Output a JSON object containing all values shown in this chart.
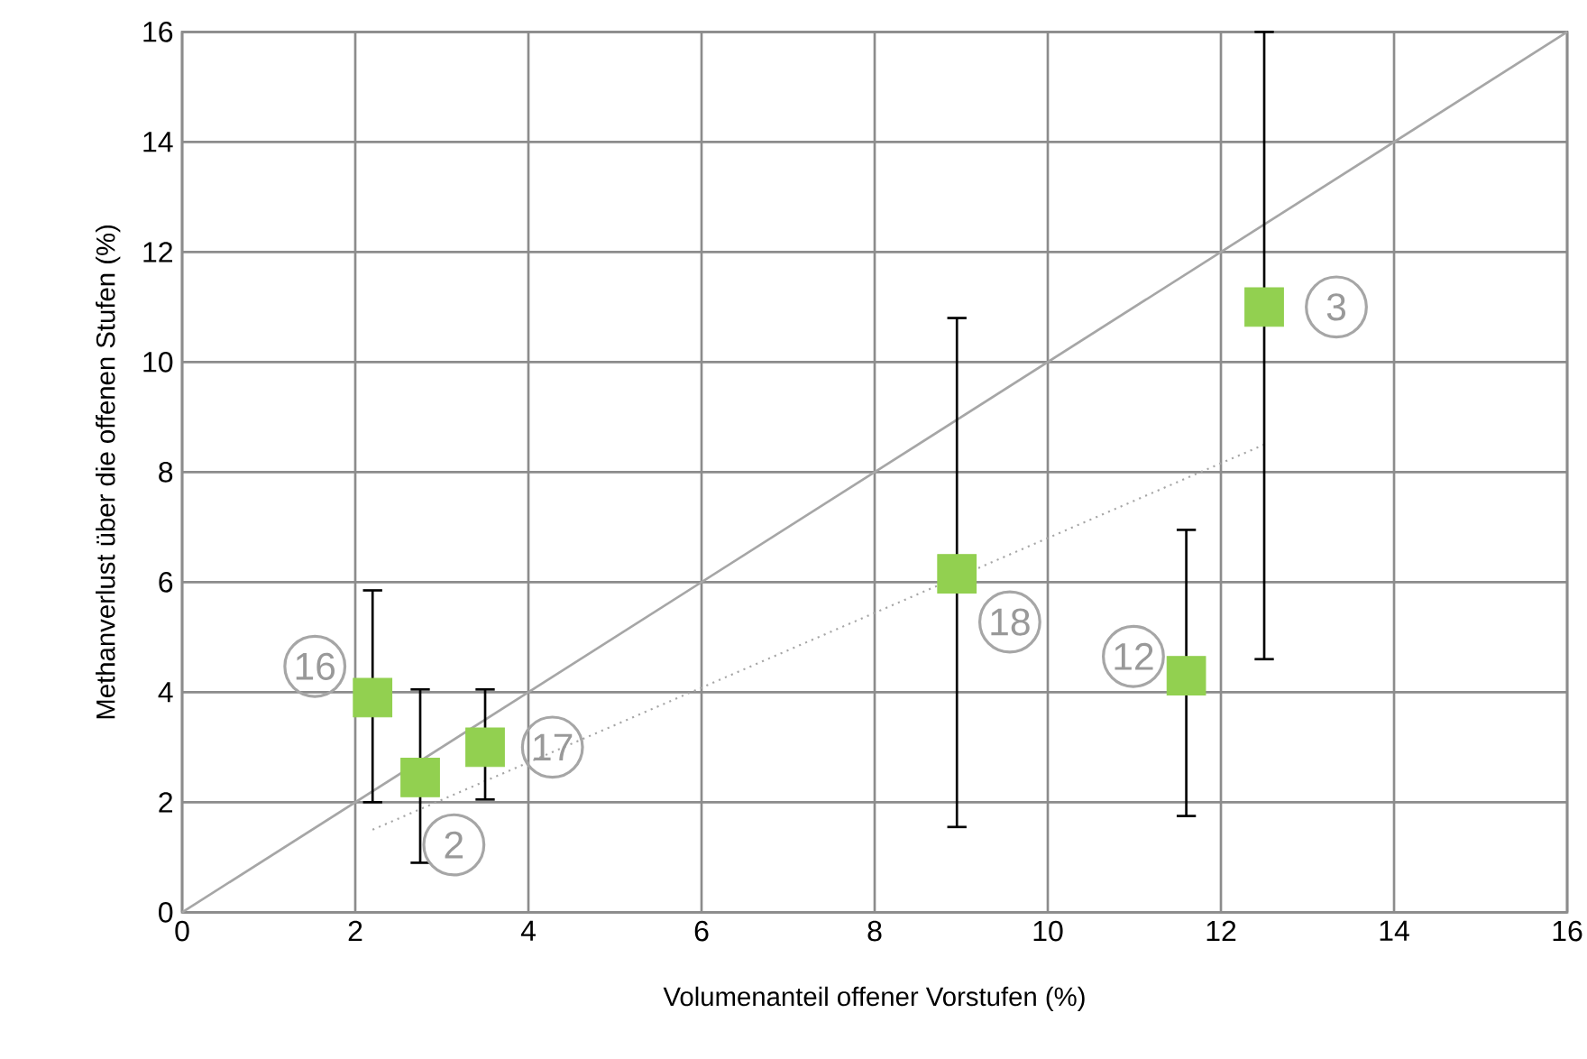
{
  "chart_data": {
    "type": "scatter",
    "xlabel": "Volumenanteil offener Vorstufen (%)",
    "ylabel": "Methanverlust über die offenen Stufen (%)",
    "xlim": [
      0,
      16
    ],
    "ylim": [
      0,
      16
    ],
    "xticks": [
      0,
      2,
      4,
      6,
      8,
      10,
      12,
      14,
      16
    ],
    "yticks": [
      0,
      2,
      4,
      6,
      8,
      10,
      12,
      14,
      16
    ],
    "grid": true,
    "series": [
      {
        "type": "line",
        "color": "#a6a6a6",
        "line_style": "solid",
        "x": [
          0,
          16
        ],
        "values": [
          0,
          16
        ]
      },
      {
        "type": "line",
        "color": "#a6a6a6",
        "line_style": "dotted",
        "x": [
          2.2,
          12.5
        ],
        "values": [
          1.5,
          8.5
        ]
      },
      {
        "marker": "square",
        "color": "#92d050",
        "x": [
          2.2,
          2.75,
          3.5,
          8.95,
          11.6,
          12.5
        ],
        "values": [
          3.9,
          2.45,
          3.0,
          6.15,
          4.3,
          11.0
        ],
        "errors": [
          [
            2.0,
            5.85
          ],
          [
            0.9,
            4.05
          ],
          [
            2.05,
            4.05
          ],
          [
            1.55,
            10.8
          ],
          [
            1.75,
            6.95
          ],
          [
            4.6,
            16
          ]
        ]
      }
    ],
    "annotations": [
      {
        "text": "16",
        "x": 2.2,
        "y": 3.9
      },
      {
        "text": "2",
        "x": 2.75,
        "y": 2.45
      },
      {
        "text": "17",
        "x": 3.5,
        "y": 3.0
      },
      {
        "text": "18",
        "x": 8.95,
        "y": 6.15
      },
      {
        "text": "12",
        "x": 11.6,
        "y": 4.3
      },
      {
        "text": "3",
        "x": 12.5,
        "y": 11.0
      }
    ]
  }
}
